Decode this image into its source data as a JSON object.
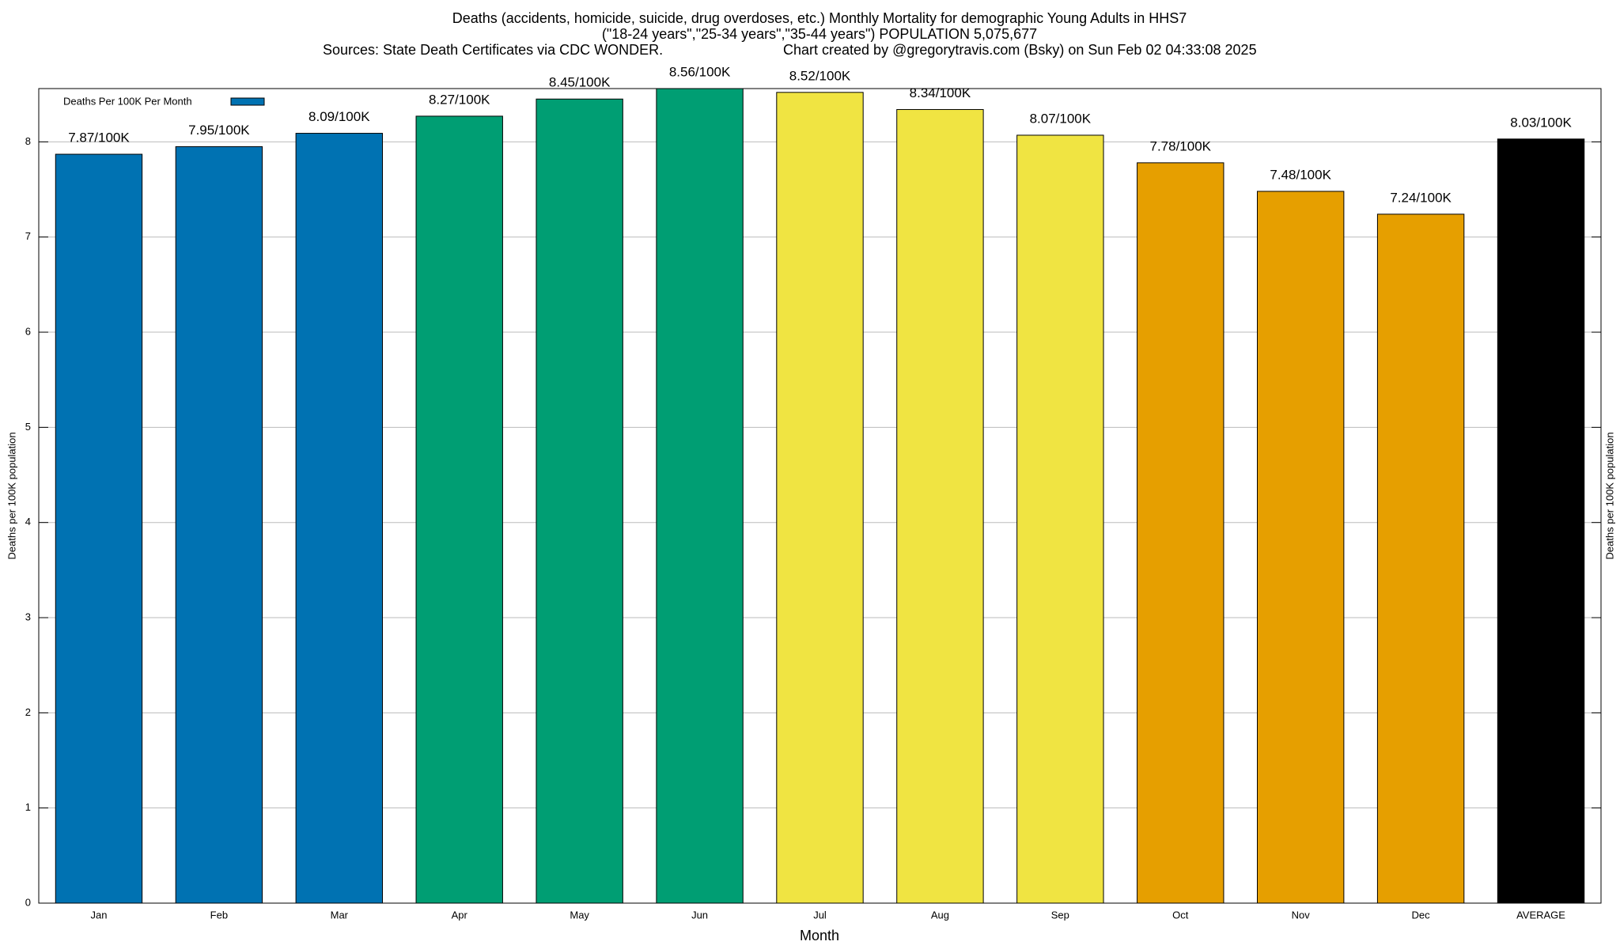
{
  "chart_data": {
    "type": "bar",
    "title": [
      "Deaths (accidents, homicide, suicide, drug overdoses, etc.) Monthly Mortality for demographic Young Adults in HHS7",
      "(\"18-24 years\",\"25-34 years\",\"35-44 years\") POPULATION 5,075,677"
    ],
    "sources": "Sources: State Death Certificates via CDC WONDER.",
    "credit": "Chart created by @gregorytravis.com (Bsky) on Sun Feb 02 04:33:08 2025",
    "x_label": "Month",
    "y_label": "Deaths per 100K population",
    "legend": "Deaths Per 100K Per Month",
    "legend_color": "#0072b2",
    "legend_position": "top-left",
    "categories": [
      "Jan",
      "Feb",
      "Mar",
      "Apr",
      "May",
      "Jun",
      "Jul",
      "Aug",
      "Sep",
      "Oct",
      "Nov",
      "Dec",
      "AVERAGE"
    ],
    "values": [
      7.87,
      7.95,
      8.09,
      8.27,
      8.45,
      8.56,
      8.52,
      8.34,
      8.07,
      7.78,
      7.48,
      7.24,
      8.03
    ],
    "value_labels": [
      "7.87/100K",
      "7.95/100K",
      "8.09/100K",
      "8.27/100K",
      "8.45/100K",
      "8.56/100K",
      "8.52/100K",
      "8.34/100K",
      "8.07/100K",
      "7.78/100K",
      "7.48/100K",
      "7.24/100K",
      "8.03/100K"
    ],
    "colors": [
      "#0072b2",
      "#0072b2",
      "#0072b2",
      "#009e73",
      "#009e73",
      "#009e73",
      "#f0e442",
      "#f0e442",
      "#f0e442",
      "#e69f00",
      "#e69f00",
      "#e69f00",
      "#000000"
    ],
    "ylim": [
      0,
      8.56
    ],
    "yticks": [
      0,
      1,
      2,
      3,
      4,
      5,
      6,
      7,
      8
    ],
    "grid": true
  }
}
